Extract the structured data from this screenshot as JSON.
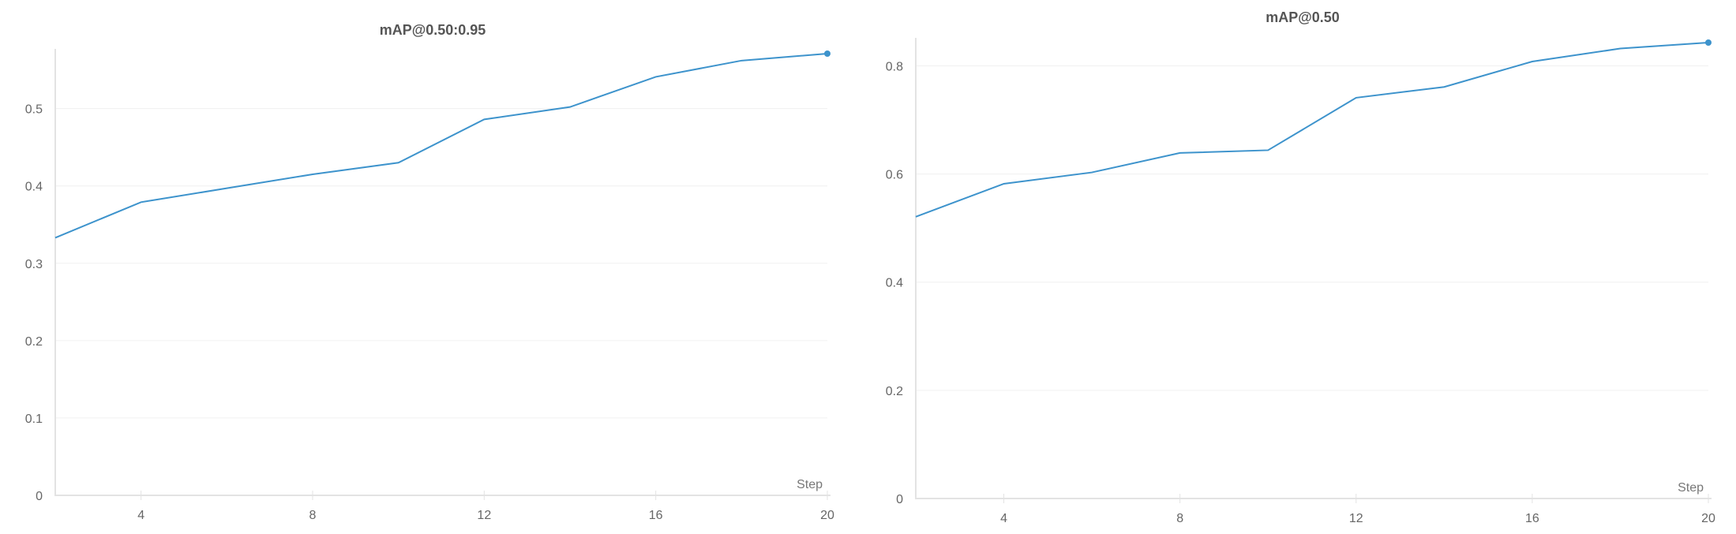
{
  "chart_data": [
    {
      "type": "line",
      "title": "mAP@0.50:0.95",
      "xlabel": "Step",
      "ylabel": "",
      "x": [
        2,
        4,
        6,
        8,
        10,
        12,
        14,
        16,
        18,
        20
      ],
      "series": [
        {
          "values": [
            0.333,
            0.379,
            0.397,
            0.415,
            0.43,
            0.486,
            0.502,
            0.541,
            0.562,
            0.571
          ]
        }
      ],
      "xlim": [
        2,
        20
      ],
      "ylim": [
        0,
        0.571
      ],
      "xticks": [
        4,
        8,
        12,
        16,
        20
      ],
      "yticks": [
        0,
        0.1,
        0.2,
        0.3,
        0.4,
        0.5
      ],
      "yticks_labels": [
        "0",
        "0.1",
        "0.2",
        "0.3",
        "0.4",
        "0.5"
      ],
      "grid": true,
      "color": "#3d93cc"
    },
    {
      "type": "line",
      "title": "mAP@0.50",
      "xlabel": "Step",
      "ylabel": "",
      "x": [
        2,
        4,
        6,
        8,
        10,
        12,
        14,
        16,
        18,
        20
      ],
      "series": [
        {
          "values": [
            0.521,
            0.582,
            0.603,
            0.639,
            0.644,
            0.741,
            0.761,
            0.808,
            0.832,
            0.843
          ]
        }
      ],
      "xlim": [
        2,
        20
      ],
      "ylim": [
        0,
        0.843
      ],
      "xticks": [
        4,
        8,
        12,
        16,
        20
      ],
      "yticks": [
        0,
        0.2,
        0.4,
        0.6,
        0.8
      ],
      "yticks_labels": [
        "0",
        "0.2",
        "0.4",
        "0.6",
        "0.8"
      ],
      "grid": true,
      "color": "#3d93cc"
    }
  ]
}
